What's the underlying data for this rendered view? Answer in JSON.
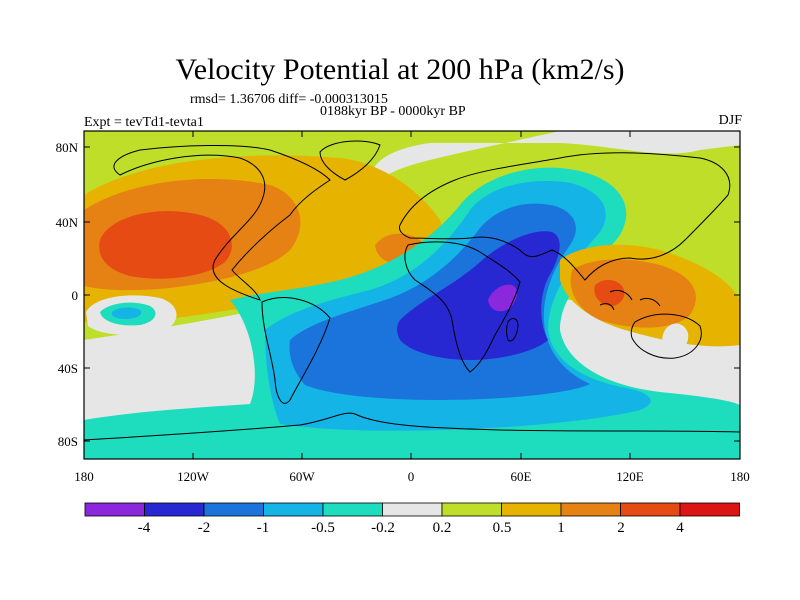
{
  "title": "Velocity Potential at 200 hPa (km2/s)",
  "stats": {
    "text": "rmsd= 1.36706 diff= -0.000313015"
  },
  "period": "0188kyr BP - 0000kyr BP",
  "experiment": "Expt = tevTd1-tevta1",
  "season": "DJF",
  "axes": {
    "y_ticks": [
      "80N",
      "40N",
      "0",
      "40S",
      "80S"
    ],
    "x_ticks": [
      "180",
      "120W",
      "60W",
      "0",
      "60E",
      "120E",
      "180"
    ]
  },
  "colorbar": {
    "colors": [
      "#8c28dc",
      "#2828d2",
      "#1a74dc",
      "#14b4e6",
      "#1edcbe",
      "#e6e6e6",
      "#bede2a",
      "#e6b400",
      "#e68214",
      "#e64b14",
      "#dc1414"
    ],
    "labels": [
      "-4",
      "-2",
      "-1",
      "-0.5",
      "-0.2",
      "0.2",
      "0.5",
      "1",
      "2",
      "4"
    ]
  }
}
